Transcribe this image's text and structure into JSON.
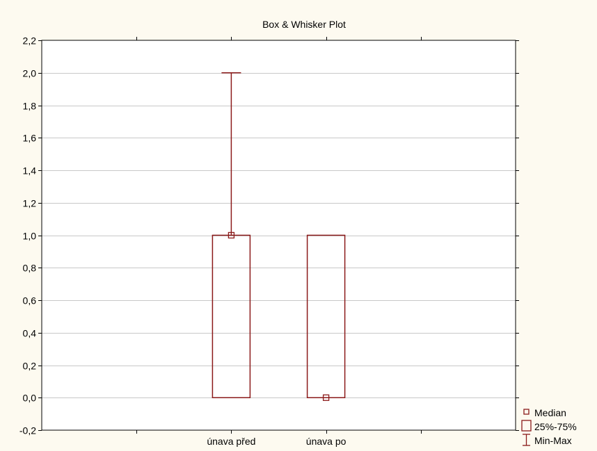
{
  "chart_data": {
    "type": "box",
    "title": "Box & Whisker Plot",
    "xlabel": "",
    "ylabel": "",
    "ylim": [
      -0.2,
      2.2
    ],
    "y_ticks": [
      "2,2",
      "2,0",
      "1,8",
      "1,6",
      "1,4",
      "1,2",
      "1,0",
      "0,8",
      "0,6",
      "0,4",
      "0,2",
      "0,0",
      "-0,2"
    ],
    "y_tick_values": [
      2.2,
      2.0,
      1.8,
      1.6,
      1.4,
      1.2,
      1.0,
      0.8,
      0.6,
      0.4,
      0.2,
      0.0,
      -0.2
    ],
    "grid": "horizontal",
    "categories": [
      "únava před",
      "únava po"
    ],
    "boxes": [
      {
        "category": "únava před",
        "min": 0.0,
        "q1": 0.0,
        "median": 1.0,
        "q3": 1.0,
        "max": 2.0
      },
      {
        "category": "únava po",
        "min": 0.0,
        "q1": 0.0,
        "median": 0.0,
        "q3": 1.0,
        "max": 1.0
      }
    ],
    "legend": {
      "position": "bottom-right",
      "items": [
        {
          "label": "Median",
          "symbol": "small-square"
        },
        {
          "label": "25%-75%",
          "symbol": "box"
        },
        {
          "label": "Min-Max",
          "symbol": "whisker"
        }
      ]
    },
    "colors": {
      "series": "#8b1a1a",
      "grid": "#c8c8c8",
      "background": "#fdfaf0",
      "plot_background": "#ffffff"
    }
  }
}
